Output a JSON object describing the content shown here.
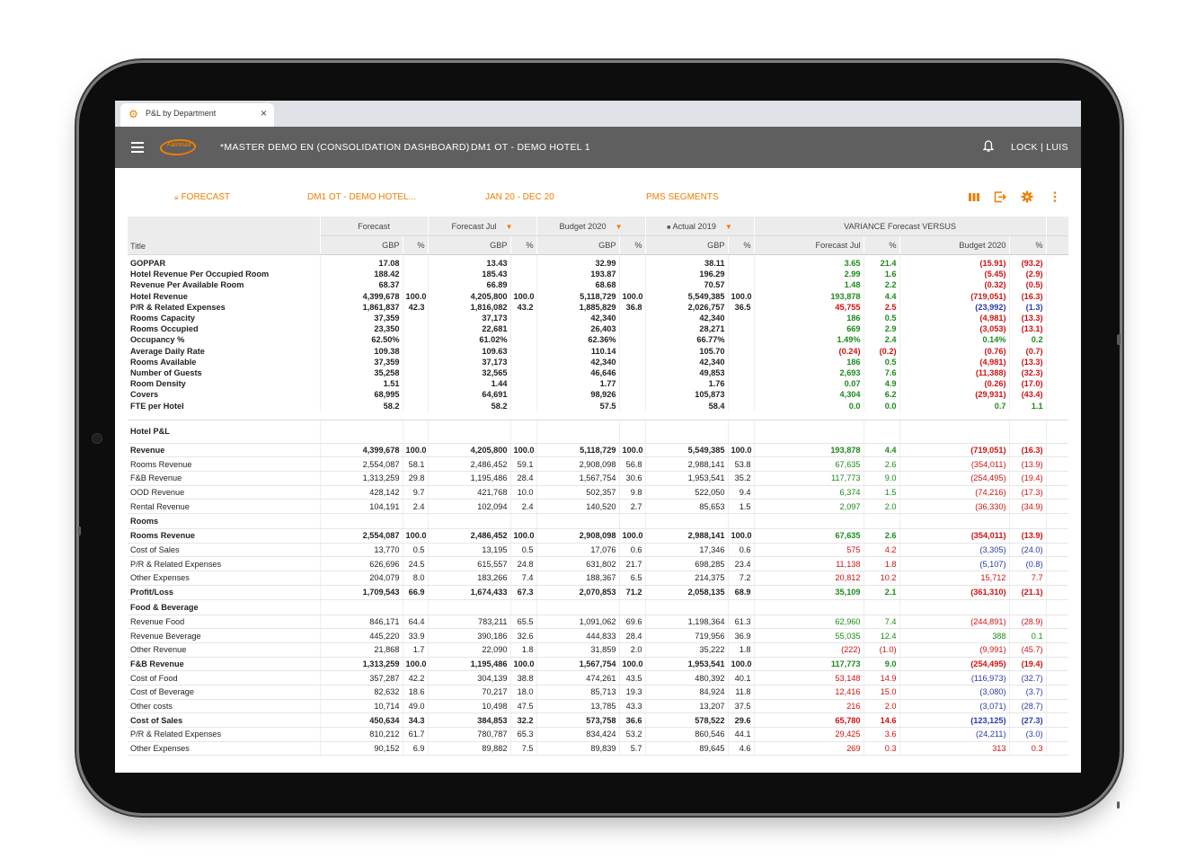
{
  "tab": {
    "title": "P&L by Department",
    "close": "×"
  },
  "appbar": {
    "logo_text": "Fairmas",
    "title": "*MASTER DEMO EN (CONSOLIDATION DASHBOARD)",
    "hotel": "DM1 OT - DEMO HOTEL 1",
    "lock_user": "LOCK  |  LUIS"
  },
  "filters": {
    "scenario": "FORECAST",
    "hotel": "DM1 OT - DEMO HOTEL...",
    "period": "JAN 20 - DEC 20",
    "segments": "PMS SEGMENTS"
  },
  "colors": {
    "accent": "#ef7d00",
    "appbar": "#5f5f5f",
    "positive": "#1c8a1c",
    "negative": "#d01212",
    "negative_blue": "#2a3ba6"
  },
  "icons": [
    "columns-icon",
    "export-icon",
    "settings-gear-icon",
    "more-vertical-icon",
    "bell-icon",
    "menu-icon",
    "lock-small-icon"
  ],
  "table": {
    "header1": {
      "title": "Title",
      "forecast": "Forecast",
      "forecast_jul": "Forecast Jul",
      "budget": "Budget 2020",
      "actual": "Actual 2019",
      "variance": "VARIANCE Forecast VERSUS"
    },
    "header2": {
      "gbp": "GBP",
      "pct": "%",
      "var_forecast": "Forecast Jul",
      "var_budget": "Budget 2020"
    },
    "kpi_rows": [
      [
        "GOPPAR",
        "17.08",
        "",
        "13.43",
        "",
        "32.99",
        "",
        "38.11",
        "",
        "3.65",
        "21.4",
        "(15.91)",
        "(93.2)"
      ],
      [
        "Hotel Revenue Per Occupied Room",
        "188.42",
        "",
        "185.43",
        "",
        "193.87",
        "",
        "196.29",
        "",
        "2.99",
        "1.6",
        "(5.45)",
        "(2.9)"
      ],
      [
        "Revenue Per Available Room",
        "68.37",
        "",
        "66.89",
        "",
        "68.68",
        "",
        "70.57",
        "",
        "1.48",
        "2.2",
        "(0.32)",
        "(0.5)"
      ],
      [
        "Hotel Revenue",
        "4,399,678",
        "100.0",
        "4,205,800",
        "100.0",
        "5,118,729",
        "100.0",
        "5,549,385",
        "100.0",
        "193,878",
        "4.4",
        "(719,051)",
        "(16.3)"
      ],
      [
        "P/R & Related Expenses",
        "1,861,837",
        "42.3",
        "1,816,082",
        "43.2",
        "1,885,829",
        "36.8",
        "2,026,757",
        "36.5",
        "45,755",
        "2.5",
        "(23,992)",
        "(1.3)"
      ],
      [
        "Rooms Capacity",
        "37,359",
        "",
        "37,173",
        "",
        "42,340",
        "",
        "42,340",
        "",
        "186",
        "0.5",
        "(4,981)",
        "(13.3)"
      ],
      [
        "Rooms Occupied",
        "23,350",
        "",
        "22,681",
        "",
        "26,403",
        "",
        "28,271",
        "",
        "669",
        "2.9",
        "(3,053)",
        "(13.1)"
      ],
      [
        "Occupancy %",
        "62.50%",
        "",
        "61.02%",
        "",
        "62.36%",
        "",
        "66.77%",
        "",
        "1.49%",
        "2.4",
        "0.14%",
        "0.2"
      ],
      [
        "Average Daily Rate",
        "109.38",
        "",
        "109.63",
        "",
        "110.14",
        "",
        "105.70",
        "",
        "(0.24)",
        "(0.2)",
        "(0.76)",
        "(0.7)"
      ],
      [
        "Rooms Available",
        "37,359",
        "",
        "37,173",
        "",
        "42,340",
        "",
        "42,340",
        "",
        "186",
        "0.5",
        "(4,981)",
        "(13.3)"
      ],
      [
        "Number of Guests",
        "35,258",
        "",
        "32,565",
        "",
        "46,646",
        "",
        "49,853",
        "",
        "2,693",
        "7.6",
        "(11,388)",
        "(32.3)"
      ],
      [
        "Room Density",
        "1.51",
        "",
        "1.44",
        "",
        "1.77",
        "",
        "1.76",
        "",
        "0.07",
        "4.9",
        "(0.26)",
        "(17.0)"
      ],
      [
        "Covers",
        "68,995",
        "",
        "64,691",
        "",
        "98,926",
        "",
        "105,873",
        "",
        "4,304",
        "6.2",
        "(29,931)",
        "(43.4)"
      ],
      [
        "FTE per Hotel",
        "58.2",
        "",
        "58.2",
        "",
        "57.5",
        "",
        "58.4",
        "",
        "0.0",
        "0.0",
        "0.7",
        "1.1"
      ]
    ],
    "kpi_colors": [
      [
        "pos",
        "pos",
        "neg",
        "neg"
      ],
      [
        "pos",
        "pos",
        "neg",
        "neg"
      ],
      [
        "pos",
        "pos",
        "neg",
        "neg"
      ],
      [
        "pos",
        "pos",
        "neg",
        "neg"
      ],
      [
        "neg",
        "neg",
        "blu",
        "blu"
      ],
      [
        "pos",
        "pos",
        "neg",
        "neg"
      ],
      [
        "pos",
        "pos",
        "neg",
        "neg"
      ],
      [
        "pos",
        "pos",
        "pos",
        "pos"
      ],
      [
        "neg",
        "neg",
        "neg",
        "neg"
      ],
      [
        "pos",
        "pos",
        "neg",
        "neg"
      ],
      [
        "pos",
        "pos",
        "neg",
        "neg"
      ],
      [
        "pos",
        "pos",
        "neg",
        "neg"
      ],
      [
        "pos",
        "pos",
        "neg",
        "neg"
      ],
      [
        "pos",
        "pos",
        "pos",
        "pos"
      ]
    ],
    "pl_rows": [
      {
        "t": "sec",
        "c": [
          "Hotel P&L"
        ]
      },
      {
        "t": "b",
        "c": [
          "Revenue",
          "4,399,678",
          "100.0",
          "4,205,800",
          "100.0",
          "5,118,729",
          "100.0",
          "5,549,385",
          "100.0",
          "193,878",
          "4.4",
          "(719,051)",
          "(16.3)"
        ],
        "k": [
          "pos",
          "pos",
          "neg",
          "neg"
        ]
      },
      {
        "t": "n",
        "c": [
          "Rooms Revenue",
          "2,554,087",
          "58.1",
          "2,486,452",
          "59.1",
          "2,908,098",
          "56.8",
          "2,988,141",
          "53.8",
          "67,635",
          "2.6",
          "(354,011)",
          "(13.9)"
        ],
        "k": [
          "pos",
          "pos",
          "neg",
          "neg"
        ]
      },
      {
        "t": "n",
        "c": [
          "F&B Revenue",
          "1,313,259",
          "29.8",
          "1,195,486",
          "28.4",
          "1,567,754",
          "30.6",
          "1,953,541",
          "35.2",
          "117,773",
          "9.0",
          "(254,495)",
          "(19.4)"
        ],
        "k": [
          "pos",
          "pos",
          "neg",
          "neg"
        ]
      },
      {
        "t": "n",
        "c": [
          "OOD Revenue",
          "428,142",
          "9.7",
          "421,768",
          "10.0",
          "502,357",
          "9.8",
          "522,050",
          "9.4",
          "6,374",
          "1.5",
          "(74,216)",
          "(17.3)"
        ],
        "k": [
          "pos",
          "pos",
          "neg",
          "neg"
        ]
      },
      {
        "t": "n",
        "c": [
          "Rental Revenue",
          "104,191",
          "2.4",
          "102,094",
          "2.4",
          "140,520",
          "2.7",
          "85,653",
          "1.5",
          "2,097",
          "2.0",
          "(36,330)",
          "(34.9)"
        ],
        "k": [
          "pos",
          "pos",
          "neg",
          "neg"
        ]
      },
      {
        "t": "sec",
        "c": [
          "Rooms"
        ]
      },
      {
        "t": "b",
        "c": [
          "Rooms Revenue",
          "2,554,087",
          "100.0",
          "2,486,452",
          "100.0",
          "2,908,098",
          "100.0",
          "2,988,141",
          "100.0",
          "67,635",
          "2.6",
          "(354,011)",
          "(13.9)"
        ],
        "k": [
          "pos",
          "pos",
          "neg",
          "neg"
        ]
      },
      {
        "t": "n",
        "c": [
          "Cost of Sales",
          "13,770",
          "0.5",
          "13,195",
          "0.5",
          "17,076",
          "0.6",
          "17,346",
          "0.6",
          "575",
          "4.2",
          "(3,305)",
          "(24.0)"
        ],
        "k": [
          "neg",
          "neg",
          "blu",
          "blu"
        ]
      },
      {
        "t": "n",
        "c": [
          "P/R & Related Expenses",
          "626,696",
          "24.5",
          "615,557",
          "24.8",
          "631,802",
          "21.7",
          "698,285",
          "23.4",
          "11,138",
          "1.8",
          "(5,107)",
          "(0.8)"
        ],
        "k": [
          "neg",
          "neg",
          "blu",
          "blu"
        ]
      },
      {
        "t": "n",
        "c": [
          "Other Expenses",
          "204,079",
          "8.0",
          "183,266",
          "7.4",
          "188,367",
          "6.5",
          "214,375",
          "7.2",
          "20,812",
          "10.2",
          "15,712",
          "7.7"
        ],
        "k": [
          "neg",
          "neg",
          "neg",
          "neg"
        ]
      },
      {
        "t": "b",
        "c": [
          "Profit/Loss",
          "1,709,543",
          "66.9",
          "1,674,433",
          "67.3",
          "2,070,853",
          "71.2",
          "2,058,135",
          "68.9",
          "35,109",
          "2.1",
          "(361,310)",
          "(21.1)"
        ],
        "k": [
          "pos",
          "pos",
          "neg",
          "neg"
        ]
      },
      {
        "t": "sec",
        "c": [
          "Food & Beverage"
        ]
      },
      {
        "t": "n",
        "c": [
          "Revenue Food",
          "846,171",
          "64.4",
          "783,211",
          "65.5",
          "1,091,062",
          "69.6",
          "1,198,364",
          "61.3",
          "62,960",
          "7.4",
          "(244,891)",
          "(28.9)"
        ],
        "k": [
          "pos",
          "pos",
          "neg",
          "neg"
        ]
      },
      {
        "t": "n",
        "c": [
          "Revenue Beverage",
          "445,220",
          "33.9",
          "390,186",
          "32.6",
          "444,833",
          "28.4",
          "719,956",
          "36.9",
          "55,035",
          "12.4",
          "388",
          "0.1"
        ],
        "k": [
          "pos",
          "pos",
          "pos",
          "pos"
        ]
      },
      {
        "t": "n",
        "c": [
          "Other Revenue",
          "21,868",
          "1.7",
          "22,090",
          "1.8",
          "31,859",
          "2.0",
          "35,222",
          "1.8",
          "(222)",
          "(1.0)",
          "(9,991)",
          "(45.7)"
        ],
        "k": [
          "neg",
          "neg",
          "neg",
          "neg"
        ]
      },
      {
        "t": "b",
        "c": [
          "F&B Revenue",
          "1,313,259",
          "100.0",
          "1,195,486",
          "100.0",
          "1,567,754",
          "100.0",
          "1,953,541",
          "100.0",
          "117,773",
          "9.0",
          "(254,495)",
          "(19.4)"
        ],
        "k": [
          "pos",
          "pos",
          "neg",
          "neg"
        ]
      },
      {
        "t": "n",
        "c": [
          "Cost of Food",
          "357,287",
          "42.2",
          "304,139",
          "38.8",
          "474,261",
          "43.5",
          "480,392",
          "40.1",
          "53,148",
          "14.9",
          "(116,973)",
          "(32.7)"
        ],
        "k": [
          "neg",
          "neg",
          "blu",
          "blu"
        ]
      },
      {
        "t": "n",
        "c": [
          "Cost of Beverage",
          "82,632",
          "18.6",
          "70,217",
          "18.0",
          "85,713",
          "19.3",
          "84,924",
          "11.8",
          "12,416",
          "15.0",
          "(3,080)",
          "(3.7)"
        ],
        "k": [
          "neg",
          "neg",
          "blu",
          "blu"
        ]
      },
      {
        "t": "n",
        "c": [
          "Other costs",
          "10,714",
          "49.0",
          "10,498",
          "47.5",
          "13,785",
          "43.3",
          "13,207",
          "37.5",
          "216",
          "2.0",
          "(3,071)",
          "(28.7)"
        ],
        "k": [
          "neg",
          "neg",
          "blu",
          "blu"
        ]
      },
      {
        "t": "b",
        "c": [
          "Cost of Sales",
          "450,634",
          "34.3",
          "384,853",
          "32.2",
          "573,758",
          "36.6",
          "578,522",
          "29.6",
          "65,780",
          "14.6",
          "(123,125)",
          "(27.3)"
        ],
        "k": [
          "neg",
          "neg",
          "blu",
          "blu"
        ]
      },
      {
        "t": "n",
        "c": [
          "P/R & Related Expenses",
          "810,212",
          "61.7",
          "780,787",
          "65.3",
          "834,424",
          "53.2",
          "860,546",
          "44.1",
          "29,425",
          "3.6",
          "(24,211)",
          "(3.0)"
        ],
        "k": [
          "neg",
          "neg",
          "blu",
          "blu"
        ]
      },
      {
        "t": "n",
        "c": [
          "Other Expenses",
          "90,152",
          "6.9",
          "89,882",
          "7.5",
          "89,839",
          "5.7",
          "89,645",
          "4.6",
          "269",
          "0.3",
          "313",
          "0.3"
        ],
        "k": [
          "neg",
          "neg",
          "neg",
          "neg"
        ]
      }
    ]
  }
}
